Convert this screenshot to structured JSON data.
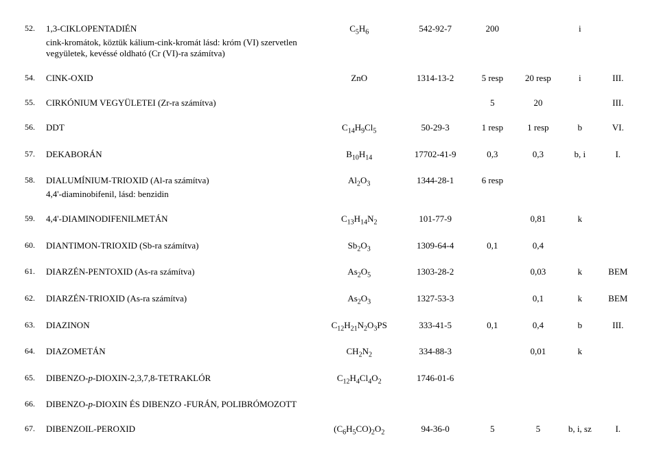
{
  "rows": [
    {
      "num": "52.",
      "name": "1,3-CIKLOPENTADIÉN",
      "note": "cink-kromátok, köztük kálium-cink-kromát lásd: króm (VI) szervetlen vegyületek, kevéssé oldható (Cr (VI)-ra számítva)",
      "formula_html": "C<sub>5</sub>H<sub>6</sub>",
      "cas": "542-92-7",
      "c5": "200",
      "c6": "",
      "c7": "i",
      "c8": ""
    },
    {
      "num": "54.",
      "name": "CINK-OXID",
      "formula_html": "ZnO",
      "cas": "1314-13-2",
      "c5": "5 resp",
      "c6": "20 resp",
      "c7": "i",
      "c8": "III."
    },
    {
      "num": "55.",
      "name": "CIRKÓNIUM VEGYÜLETEI (Zr-ra számítva)",
      "formula_html": "",
      "cas": "",
      "c5": "5",
      "c6": "20",
      "c7": "",
      "c8": "III."
    },
    {
      "num": "56.",
      "name": "DDT",
      "formula_html": "C<sub>14</sub>H<sub>9</sub>Cl<sub>5</sub>",
      "cas": "50-29-3",
      "c5": "1 resp",
      "c6": "1 resp",
      "c7": "b",
      "c8": "VI."
    },
    {
      "num": "57.",
      "name": "DEKABORÁN",
      "formula_html": "B<sub>10</sub>H<sub>14</sub>",
      "cas": "17702-41-9",
      "c5": "0,3",
      "c6": "0,3",
      "c7": "b, i",
      "c8": "I."
    },
    {
      "num": "58.",
      "name": "DIALUMÍNIUM-TRIOXID (Al-ra számítva)",
      "note": "4,4'-diaminobifenil, lásd: benzidin",
      "formula_html": "Al<sub>2</sub>O<sub>3</sub>",
      "cas": "1344-28-1",
      "c5": "6 resp",
      "c6": "",
      "c7": "",
      "c8": ""
    },
    {
      "num": "59.",
      "name": "4,4'-DIAMINODIFENILMETÁN",
      "formula_html": "C<sub>13</sub>H<sub>14</sub>N<sub>2</sub>",
      "cas": "101-77-9",
      "c5": "",
      "c6": "0,81",
      "c7": "k",
      "c8": ""
    },
    {
      "num": "60.",
      "name": "DIANTIMON-TRIOXID (Sb-ra számítva)",
      "formula_html": "Sb<sub>2</sub>O<sub>3</sub>",
      "cas": "1309-64-4",
      "c5": "0,1",
      "c6": "0,4",
      "c7": "",
      "c8": ""
    },
    {
      "num": "61.",
      "name": "DIARZÉN-PENTOXID (As-ra számítva)",
      "formula_html": "As<sub>2</sub>O<sub>5</sub>",
      "cas": "1303-28-2",
      "c5": "",
      "c6": "0,03",
      "c7": "k",
      "c8": "BEM"
    },
    {
      "num": "62.",
      "name": "DIARZÉN-TRIOXID (As-ra számítva)",
      "formula_html": "As<sub>2</sub>O<sub>3</sub>",
      "cas": "1327-53-3",
      "c5": "",
      "c6": "0,1",
      "c7": "k",
      "c8": "BEM"
    },
    {
      "num": "63.",
      "name": "DIAZINON",
      "formula_html": "C<sub>12</sub>H<sub>21</sub>N<sub>2</sub>O<sub>3</sub>PS",
      "cas": "333-41-5",
      "c5": "0,1",
      "c6": "0,4",
      "c7": "b",
      "c8": "III."
    },
    {
      "num": "64.",
      "name": "DIAZOMETÁN",
      "formula_html": "CH<sub>2</sub>N<sub>2</sub>",
      "cas": "334-88-3",
      "c5": "",
      "c6": "0,01",
      "c7": "k",
      "c8": ""
    },
    {
      "num": "65.",
      "name_html": "DIBENZO-<span class=\"it\">p</span>-DIOXIN-2,3,7,8-TETRAKLÓR",
      "formula_html": "C<sub>12</sub>H<sub>4</sub>Cl<sub>4</sub>O<sub>2</sub>",
      "cas": "1746-01-6",
      "c5": "",
      "c6": "",
      "c7": "",
      "c8": ""
    },
    {
      "num": "66.",
      "name_html": "DIBENZO-<span class=\"it\">p</span>-DIOXIN ÉS DIBENZO -FURÁN, POLIBRÓMOZOTT",
      "formula_html": "",
      "cas": "",
      "c5": "",
      "c6": "",
      "c7": "",
      "c8": ""
    },
    {
      "num": "67.",
      "name": "DIBENZOIL-PEROXID",
      "formula_html": "(C<sub>6</sub>H<sub>5</sub>CO)<sub>2</sub>O<sub>2</sub>",
      "cas": "94-36-0",
      "c5": "5",
      "c6": "5",
      "c7": "b, i, sz",
      "c8": "I."
    }
  ]
}
